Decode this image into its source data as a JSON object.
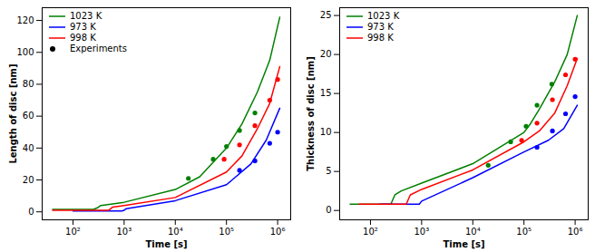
{
  "chart_data": [
    {
      "type": "line",
      "x_label": "Time [s]",
      "y_label": "Length of disc [nm]",
      "log": "x",
      "legend": "upper left",
      "grid": false,
      "xlim": [
        25,
        1800000
      ],
      "xticks": [
        {
          "value": 100,
          "label": "10²"
        },
        {
          "value": 1000,
          "label": "10³"
        },
        {
          "value": 10000,
          "label": "10⁴"
        },
        {
          "value": 100000,
          "label": "10⁵"
        },
        {
          "value": 1000000,
          "label": "10⁶"
        }
      ],
      "ylim": [
        -5,
        128
      ],
      "yticks": [
        0,
        20,
        40,
        60,
        80,
        100,
        120
      ],
      "series": [
        {
          "name": "1023 K",
          "type": "line",
          "color": "#008000",
          "x": [
            40,
            100,
            250,
            300,
            350,
            1000,
            10000,
            30000,
            100000,
            200000,
            400000,
            700000,
            1100000
          ],
          "values": [
            1.5,
            1.5,
            1.5,
            2.5,
            4,
            6,
            14,
            22,
            40,
            55,
            75,
            95,
            122
          ]
        },
        {
          "name": "973 K",
          "type": "line",
          "color": "#0000ff",
          "x": [
            100,
            300,
            900,
            1000,
            1100,
            10000,
            100000,
            300000,
            600000,
            1100000
          ],
          "values": [
            0.5,
            0.5,
            0.5,
            1,
            2,
            7,
            17,
            30,
            45,
            65
          ]
        },
        {
          "name": "998 K",
          "type": "line",
          "color": "#ff0000",
          "x": [
            40,
            200,
            500,
            600,
            1000,
            10000,
            100000,
            200000,
            400000,
            700000,
            1100000
          ],
          "values": [
            1,
            1,
            1,
            3,
            4,
            9,
            25,
            35,
            52,
            68,
            91
          ]
        },
        {
          "name": "Experiments",
          "type": "scatter",
          "color": "#000000",
          "x": [
            18000,
            55000,
            100000,
            180000,
            360000,
            90000,
            180000,
            360000,
            700000,
            1000000,
            180000,
            360000,
            700000,
            1000000
          ],
          "values": [
            21,
            33,
            41,
            51,
            62,
            33,
            42,
            54,
            70,
            83,
            26,
            32,
            43,
            50
          ],
          "colors": [
            "#008000",
            "#008000",
            "#008000",
            "#008000",
            "#008000",
            "#ff0000",
            "#ff0000",
            "#ff0000",
            "#ff0000",
            "#ff0000",
            "#0000ff",
            "#0000ff",
            "#0000ff",
            "#0000ff"
          ]
        }
      ]
    },
    {
      "type": "line",
      "x_label": "Time [s]",
      "y_label": "Thickness of disc [nm]",
      "log": "x",
      "legend": "upper left",
      "grid": false,
      "xlim": [
        25,
        1800000
      ],
      "xticks": [
        {
          "value": 100,
          "label": "10²"
        },
        {
          "value": 1000,
          "label": "10³"
        },
        {
          "value": 10000,
          "label": "10⁴"
        },
        {
          "value": 100000,
          "label": "10⁵"
        },
        {
          "value": 1000000,
          "label": "10⁶"
        }
      ],
      "ylim": [
        -1.2,
        26
      ],
      "yticks": [
        0,
        5,
        10,
        15,
        20,
        25
      ],
      "series": [
        {
          "name": "1023 K",
          "type": "line",
          "color": "#008000",
          "x": [
            40,
            100,
            250,
            300,
            400,
            1000,
            10000,
            100000,
            130000,
            200000,
            400000,
            700000,
            1100000
          ],
          "values": [
            0.8,
            0.8,
            0.8,
            2,
            2.5,
            3.5,
            6,
            10,
            11,
            13,
            16.5,
            20,
            25
          ]
        },
        {
          "name": "973 K",
          "type": "line",
          "color": "#0000ff",
          "x": [
            150,
            300,
            900,
            1000,
            10000,
            100000,
            300000,
            600000,
            1100000
          ],
          "values": [
            0.8,
            0.8,
            0.8,
            1.2,
            4.2,
            7.5,
            9,
            10.5,
            13.5
          ]
        },
        {
          "name": "998 K",
          "type": "line",
          "color": "#ff0000",
          "x": [
            60,
            200,
            500,
            600,
            1000,
            10000,
            100000,
            200000,
            400000,
            700000,
            1100000
          ],
          "values": [
            0.8,
            0.8,
            0.8,
            2,
            2.7,
            5.2,
            8.8,
            10.2,
            12.5,
            16,
            19.5
          ]
        },
        {
          "type": "scatter",
          "x": [
            20000,
            55000,
            110000,
            180000,
            350000,
            90000,
            180000,
            360000,
            650000,
            1000000,
            180000,
            360000,
            650000,
            1000000
          ],
          "values": [
            5.8,
            8.8,
            10.8,
            13.5,
            16.2,
            9,
            11.2,
            14.2,
            17.4,
            19.4,
            8.1,
            10.2,
            12.4,
            14.6
          ],
          "colors": [
            "#008000",
            "#008000",
            "#008000",
            "#008000",
            "#008000",
            "#ff0000",
            "#ff0000",
            "#ff0000",
            "#ff0000",
            "#ff0000",
            "#0000ff",
            "#0000ff",
            "#0000ff",
            "#0000ff"
          ]
        }
      ]
    }
  ]
}
